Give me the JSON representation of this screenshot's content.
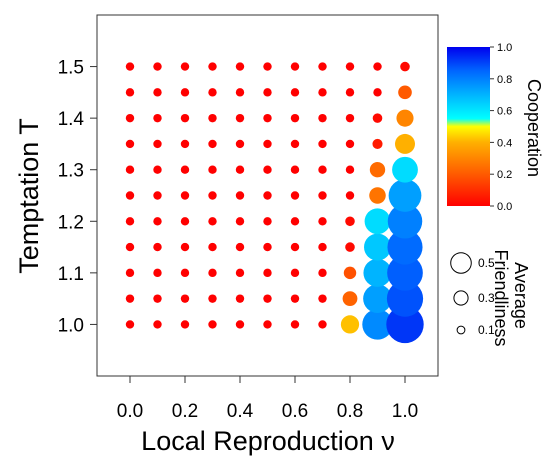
{
  "chart_data": {
    "type": "scatter",
    "title": "",
    "xlabel": "Local Reproduction ν",
    "ylabel": "Temptation T",
    "x_ticks": [
      "0.0",
      "0.2",
      "0.4",
      "0.6",
      "0.8",
      "1.0"
    ],
    "y_ticks": [
      "1.0",
      "1.1",
      "1.2",
      "1.3",
      "1.4",
      "1.5"
    ],
    "xlim": [
      -0.12,
      1.12
    ],
    "ylim": [
      0.9,
      1.6
    ],
    "grid": false,
    "x": [
      0.0,
      0.1,
      0.2,
      0.3,
      0.4,
      0.5,
      0.6,
      0.7,
      0.8,
      0.9,
      1.0
    ],
    "y": [
      1.0,
      1.05,
      1.1,
      1.15,
      1.2,
      1.25,
      1.3,
      1.35,
      1.4,
      1.45,
      1.5
    ],
    "cooperation": [
      [
        0,
        0,
        0,
        0,
        0,
        0,
        0,
        0,
        0.42,
        0.78,
        0.92
      ],
      [
        0,
        0,
        0,
        0,
        0,
        0,
        0,
        0,
        0.22,
        0.74,
        0.88
      ],
      [
        0,
        0,
        0,
        0,
        0,
        0,
        0,
        0,
        0.18,
        0.7,
        0.86
      ],
      [
        0,
        0,
        0,
        0,
        0,
        0,
        0,
        0,
        0.02,
        0.66,
        0.84
      ],
      [
        0,
        0,
        0,
        0,
        0,
        0,
        0,
        0,
        0.02,
        0.62,
        0.8
      ],
      [
        0,
        0,
        0,
        0,
        0,
        0,
        0,
        0,
        0,
        0.26,
        0.74
      ],
      [
        0,
        0,
        0,
        0,
        0,
        0,
        0,
        0,
        0,
        0.24,
        0.62
      ],
      [
        0,
        0,
        0,
        0,
        0,
        0,
        0,
        0,
        0,
        0.06,
        0.4
      ],
      [
        0,
        0,
        0,
        0,
        0,
        0,
        0,
        0,
        0,
        0.02,
        0.3
      ],
      [
        0,
        0,
        0,
        0,
        0,
        0,
        0,
        0,
        0,
        0,
        0.2
      ],
      [
        0,
        0,
        0,
        0,
        0,
        0,
        0,
        0,
        0,
        0,
        0.02
      ]
    ],
    "friendliness": [
      [
        0,
        0,
        0,
        0,
        0,
        0,
        0,
        0,
        0.17,
        0.38,
        0.5
      ],
      [
        0,
        0,
        0,
        0,
        0,
        0,
        0,
        0,
        0.11,
        0.35,
        0.48
      ],
      [
        0,
        0,
        0,
        0,
        0,
        0,
        0,
        0,
        0.07,
        0.34,
        0.47
      ],
      [
        0,
        0,
        0,
        0,
        0,
        0,
        0,
        0,
        0.02,
        0.32,
        0.46
      ],
      [
        0,
        0,
        0,
        0,
        0,
        0,
        0,
        0,
        0.02,
        0.3,
        0.45
      ],
      [
        0,
        0,
        0,
        0,
        0,
        0,
        0,
        0,
        0,
        0.14,
        0.42
      ],
      [
        0,
        0,
        0,
        0,
        0,
        0,
        0,
        0,
        0,
        0.12,
        0.3
      ],
      [
        0,
        0,
        0,
        0,
        0,
        0,
        0,
        0,
        0,
        0.03,
        0.2
      ],
      [
        0,
        0,
        0,
        0,
        0,
        0,
        0,
        0,
        0,
        0.02,
        0.15
      ],
      [
        0,
        0,
        0,
        0,
        0,
        0,
        0,
        0,
        0,
        0,
        0.09
      ],
      [
        0,
        0,
        0,
        0,
        0,
        0,
        0,
        0,
        0,
        0,
        0.02
      ]
    ],
    "colorbar": {
      "label": "Cooperation",
      "range": [
        0,
        1
      ],
      "ticks": [
        "0.0",
        "0.2",
        "0.4",
        "0.6",
        "0.8",
        "1.0"
      ],
      "stops": [
        {
          "v": 0.0,
          "color": "#ff0000"
        },
        {
          "v": 0.2,
          "color": "#ff5a00"
        },
        {
          "v": 0.4,
          "color": "#ffb000"
        },
        {
          "v": 0.5,
          "color": "#ffff00"
        },
        {
          "v": 0.55,
          "color": "#00ffff"
        },
        {
          "v": 0.7,
          "color": "#00b4ff"
        },
        {
          "v": 0.85,
          "color": "#0066ff"
        },
        {
          "v": 1.0,
          "color": "#0000ee"
        }
      ]
    },
    "size_legend": {
      "title_lines": [
        "Average",
        "Friendliness"
      ],
      "values": [
        0.5,
        0.3,
        0.1
      ],
      "labels": [
        "0.5",
        "0.3",
        "0.1"
      ]
    }
  }
}
